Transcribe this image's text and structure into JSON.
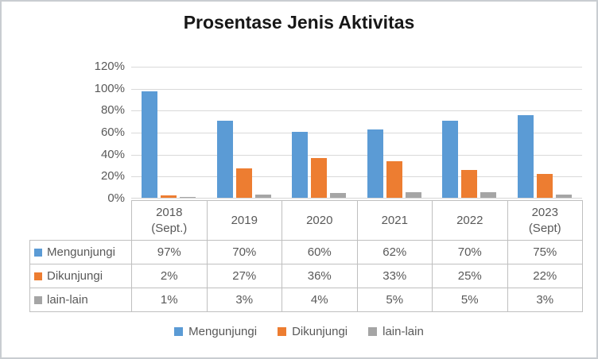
{
  "chart_data": {
    "type": "bar",
    "title": "Prosentase Jenis Aktivitas",
    "categories": [
      "2018 (Sept.)",
      "2019",
      "2020",
      "2021",
      "2022",
      "2023 (Sept)"
    ],
    "categories_lines": [
      [
        "2018",
        "(Sept.)"
      ],
      [
        "2019"
      ],
      [
        "2020"
      ],
      [
        "2021"
      ],
      [
        "2022"
      ],
      [
        "2023",
        "(Sept)"
      ]
    ],
    "series": [
      {
        "name": "Mengunjungi",
        "color": "#5B9BD5",
        "values": [
          97,
          70,
          60,
          62,
          70,
          75
        ]
      },
      {
        "name": "Dikunjungi",
        "color": "#ED7D31",
        "values": [
          2,
          27,
          36,
          33,
          25,
          22
        ]
      },
      {
        "name": "lain-lain",
        "color": "#A5A5A5",
        "values": [
          1,
          3,
          4,
          5,
          5,
          3
        ]
      }
    ],
    "value_suffix": "%",
    "xlabel": "",
    "ylabel": "",
    "ylim": [
      0,
      120
    ],
    "ytick_step": 20,
    "ytick_labels": [
      "0%",
      "20%",
      "40%",
      "60%",
      "80%",
      "100%",
      "120%"
    ],
    "grid": true,
    "legend_position": "bottom",
    "data_table_shown": true
  },
  "colors": {
    "blue_series": "#5B9BD5",
    "orange_series": "#ED7D31",
    "gray_series": "#A5A5A5",
    "gridline": "#D9D9D9",
    "table_border": "#BFBFBF",
    "axis_text": "#595959",
    "title_text": "#171717",
    "frame_border": "#C9CDD1"
  }
}
